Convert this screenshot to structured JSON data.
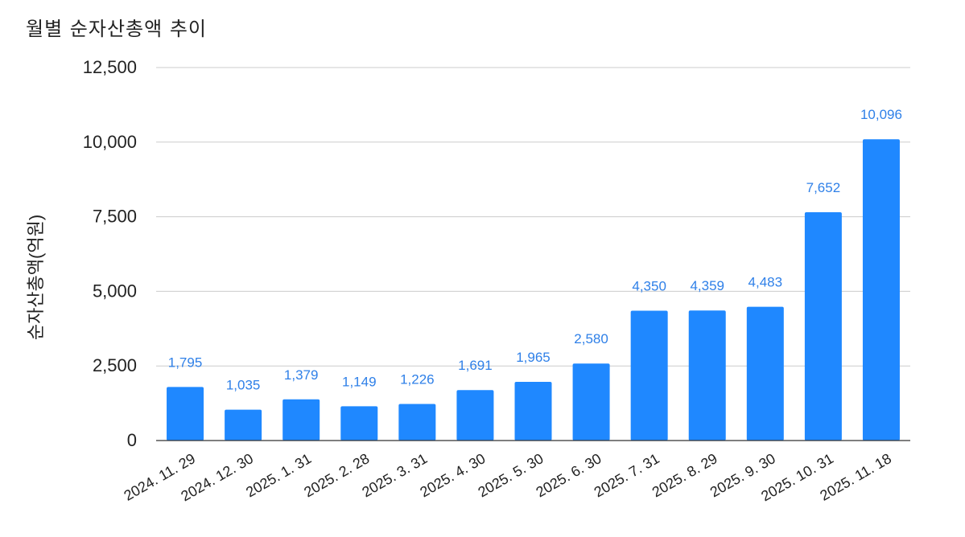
{
  "chart_data": {
    "type": "bar",
    "title": "월별 순자산총액 추이",
    "xlabel": "",
    "ylabel": "순자산총액(억원)",
    "categories": [
      "2024. 11. 29",
      "2024. 12. 30",
      "2025. 1. 31",
      "2025. 2. 28",
      "2025. 3. 31",
      "2025. 4. 30",
      "2025. 5. 30",
      "2025. 6. 30",
      "2025. 7. 31",
      "2025. 8. 29",
      "2025. 9. 30",
      "2025. 10. 31",
      "2025. 11. 18"
    ],
    "values": [
      1795,
      1035,
      1379,
      1149,
      1226,
      1691,
      1965,
      2580,
      4350,
      4359,
      4483,
      7652,
      10096
    ],
    "data_labels": [
      "1,795",
      "1,035",
      "1,379",
      "1,149",
      "1,226",
      "1,691",
      "1,965",
      "2,580",
      "4,350",
      "4,359",
      "4,483",
      "7,652",
      "10,096"
    ],
    "ylim": [
      0,
      12500
    ],
    "yticks": [
      0,
      2500,
      5000,
      7500,
      10000,
      12500
    ],
    "ytick_labels": [
      "0",
      "2,500",
      "5,000",
      "7,500",
      "10,000",
      "12,500"
    ],
    "grid": true,
    "legend": "none",
    "colors": {
      "bar": "#1f88ff",
      "label": "#2f80e8",
      "grid": "#cccccc",
      "axis": "#333333",
      "text": "#222222"
    }
  }
}
